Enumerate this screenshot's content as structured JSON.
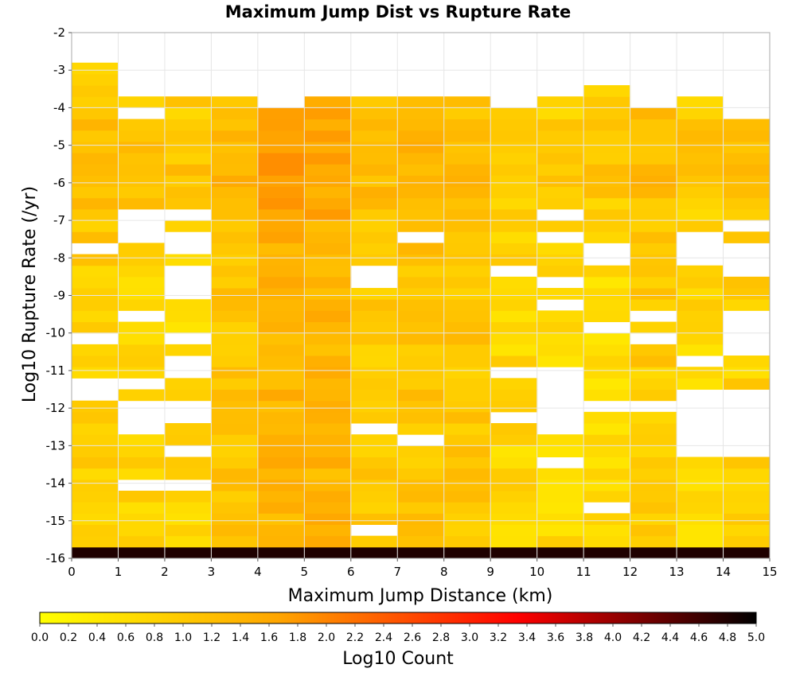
{
  "chart_data": {
    "type": "heatmap",
    "title": "Maximum Jump Dist vs Rupture Rate",
    "xlabel": "Maximum Jump Distance (km)",
    "ylabel": "Log10 Rupture Rate (/yr)",
    "xlim": [
      0,
      15
    ],
    "ylim": [
      -16,
      -2
    ],
    "x_ticks": [
      "0",
      "1",
      "2",
      "3",
      "4",
      "5",
      "6",
      "7",
      "8",
      "9",
      "10",
      "11",
      "12",
      "13",
      "14",
      "15"
    ],
    "y_ticks": [
      "-2",
      "-3",
      "-4",
      "-5",
      "-6",
      "-7",
      "-8",
      "-9",
      "-10",
      "-11",
      "-12",
      "-13",
      "-14",
      "-15",
      "-16"
    ],
    "x_bin_size": 1,
    "y_bin_size": 0.3,
    "y_bin_start": -16,
    "colorbar": {
      "label": "Log10 Count",
      "range": [
        0,
        5
      ],
      "ticks": [
        "0.0",
        "0.2",
        "0.4",
        "0.6",
        "0.8",
        "1.0",
        "1.2",
        "1.4",
        "1.6",
        "1.8",
        "2.0",
        "2.2",
        "2.4",
        "2.6",
        "2.8",
        "3.0",
        "3.2",
        "3.4",
        "3.6",
        "3.8",
        "4.0",
        "4.2",
        "4.4",
        "4.6",
        "4.8",
        "5.0"
      ],
      "colors": [
        "#ffff00",
        "#ffa500",
        "#ff0000",
        "#000000"
      ]
    },
    "columns": [
      {
        "x_start": 0,
        "ranges": [
          [
            -16.0,
            -15.7,
            4.8
          ],
          [
            -15.7,
            -2.7,
            0.9
          ]
        ],
        "missing": [
          [
            -11.8,
            -11.2
          ],
          [
            -10.2,
            -10.0
          ],
          [
            -7.9,
            -7.6
          ]
        ]
      },
      {
        "x_start": 1,
        "ranges": [
          [
            -16.0,
            -15.7,
            4.8
          ],
          [
            -15.7,
            -3.6,
            0.8
          ]
        ],
        "missing": [
          [
            -14.1,
            -13.8
          ],
          [
            -12.7,
            -11.8
          ],
          [
            -11.6,
            -11.2
          ],
          [
            -9.7,
            -9.4
          ],
          [
            -7.6,
            -6.7
          ],
          [
            -4.3,
            -4.1
          ]
        ]
      },
      {
        "x_start": 2,
        "ranges": [
          [
            -16.0,
            -15.7,
            4.8
          ],
          [
            -15.7,
            -3.6,
            0.75
          ]
        ],
        "missing": [
          [
            -14.1,
            -13.8
          ],
          [
            -13.4,
            -13.0
          ],
          [
            -12.4,
            -11.8
          ],
          [
            -11.2,
            -10.6
          ],
          [
            -10.3,
            -10.0
          ],
          [
            -9.1,
            -8.1
          ],
          [
            -7.9,
            -7.3
          ],
          [
            -6.9,
            -6.6
          ]
        ]
      },
      {
        "x_start": 3,
        "ranges": [
          [
            -16.0,
            -15.7,
            4.8
          ],
          [
            -15.7,
            -3.6,
            1.1
          ]
        ],
        "missing": []
      },
      {
        "x_start": 4,
        "ranges": [
          [
            -16.0,
            -15.7,
            4.8
          ],
          [
            -15.7,
            -3.9,
            1.4
          ]
        ],
        "missing": []
      },
      {
        "x_start": 5,
        "ranges": [
          [
            -16.0,
            -15.7,
            4.8
          ],
          [
            -15.7,
            -3.6,
            1.35
          ]
        ],
        "missing": []
      },
      {
        "x_start": 6,
        "ranges": [
          [
            -16.0,
            -15.7,
            4.8
          ],
          [
            -15.7,
            -3.6,
            1.0
          ]
        ],
        "missing": [
          [
            -15.4,
            -15.1
          ],
          [
            -12.7,
            -12.4
          ],
          [
            -8.8,
            -8.1
          ]
        ]
      },
      {
        "x_start": 7,
        "ranges": [
          [
            -16.0,
            -15.7,
            4.8
          ],
          [
            -15.7,
            -3.6,
            1.05
          ]
        ],
        "missing": [
          [
            -13.1,
            -12.8
          ],
          [
            -7.6,
            -7.3
          ]
        ]
      },
      {
        "x_start": 8,
        "ranges": [
          [
            -16.0,
            -15.7,
            4.8
          ],
          [
            -15.7,
            -3.6,
            1.05
          ]
        ],
        "missing": []
      },
      {
        "x_start": 9,
        "ranges": [
          [
            -16.0,
            -15.7,
            4.8
          ],
          [
            -15.7,
            -3.9,
            0.75
          ]
        ],
        "missing": [
          [
            -12.4,
            -12.1
          ],
          [
            -11.2,
            -10.9
          ],
          [
            -8.6,
            -8.3
          ]
        ]
      },
      {
        "x_start": 10,
        "ranges": [
          [
            -16.0,
            -15.7,
            4.8
          ],
          [
            -15.7,
            -3.6,
            0.7
          ]
        ],
        "missing": [
          [
            -14.3,
            -14.1
          ],
          [
            -13.6,
            -13.3
          ],
          [
            -12.7,
            -10.9
          ],
          [
            -9.4,
            -9.1
          ],
          [
            -8.8,
            -8.6
          ],
          [
            -8.3,
            -8.1
          ],
          [
            -7.6,
            -7.3
          ],
          [
            -7.0,
            -6.7
          ]
        ]
      },
      {
        "x_start": 11,
        "ranges": [
          [
            -16.0,
            -15.7,
            4.8
          ],
          [
            -15.7,
            -3.3,
            0.7
          ]
        ],
        "missing": [
          [
            -14.9,
            -14.6
          ],
          [
            -12.1,
            -11.8
          ],
          [
            -9.9,
            -9.6
          ],
          [
            -8.1,
            -7.6
          ]
        ]
      },
      {
        "x_start": 12,
        "ranges": [
          [
            -16.0,
            -15.7,
            4.8
          ],
          [
            -15.7,
            -3.9,
            0.95
          ]
        ],
        "missing": [
          [
            -12.1,
            -11.8
          ],
          [
            -10.2,
            -9.9
          ],
          [
            -9.6,
            -9.3
          ]
        ]
      },
      {
        "x_start": 13,
        "ranges": [
          [
            -16.0,
            -15.7,
            4.8
          ],
          [
            -15.7,
            -3.6,
            0.75
          ]
        ],
        "missing": [
          [
            -13.3,
            -11.5
          ],
          [
            -10.9,
            -10.6
          ],
          [
            -8.1,
            -7.2
          ]
        ]
      },
      {
        "x_start": 14,
        "ranges": [
          [
            -16.0,
            -15.7,
            4.8
          ],
          [
            -15.7,
            -4.2,
            0.85
          ]
        ],
        "missing": [
          [
            -13.3,
            -11.5
          ],
          [
            -10.5,
            -9.3
          ],
          [
            -8.5,
            -7.6
          ],
          [
            -7.3,
            -7.0
          ]
        ]
      }
    ]
  }
}
